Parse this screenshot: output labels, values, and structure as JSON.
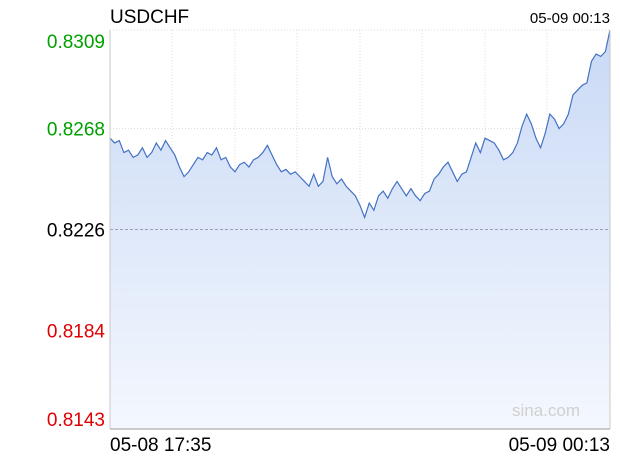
{
  "symbol": "USDCHF",
  "latest_time": "05-09 00:13",
  "watermark": "sina.com",
  "colors": {
    "line": "#4472c4",
    "fill_top": "#c9d9f5",
    "fill_bottom": "#f4f8fe",
    "grid": "#dcdcdc",
    "baseline": "#9aa0bb",
    "up": "#00a000",
    "down": "#e00000",
    "neutral": "#000000",
    "watermark": "#d0d0d0"
  },
  "chart_data": {
    "type": "area",
    "title": "USDCHF",
    "x_range": [
      "05-08 17:35",
      "05-09 00:13"
    ],
    "x_tick_labels": [
      "05-08 17:35",
      "05-09 00:13"
    ],
    "y_tick_labels": [
      {
        "value": 0.8309,
        "label": "0.8309",
        "tone": "up"
      },
      {
        "value": 0.8268,
        "label": "0.8268",
        "tone": "up"
      },
      {
        "value": 0.8226,
        "label": "0.8226",
        "tone": "neutral"
      },
      {
        "value": 0.8184,
        "label": "0.8184",
        "tone": "down"
      },
      {
        "value": 0.8143,
        "label": "0.8143",
        "tone": "down"
      }
    ],
    "ylim": [
      0.8143,
      0.8309
    ],
    "reference_value": 0.8226,
    "grid": true,
    "series": [
      {
        "values": [
          0.8264,
          0.8262,
          0.8263,
          0.8258,
          0.8259,
          0.8256,
          0.8257,
          0.826,
          0.8256,
          0.8258,
          0.8262,
          0.8259,
          0.8263,
          0.826,
          0.8257,
          0.8252,
          0.8248,
          0.825,
          0.8253,
          0.8256,
          0.8255,
          0.8258,
          0.8257,
          0.826,
          0.8255,
          0.8256,
          0.8252,
          0.825,
          0.8253,
          0.8254,
          0.8252,
          0.8255,
          0.8256,
          0.8258,
          0.8261,
          0.8257,
          0.8253,
          0.825,
          0.8251,
          0.8249,
          0.825,
          0.8248,
          0.8246,
          0.8244,
          0.8249,
          0.8244,
          0.8246,
          0.8256,
          0.8248,
          0.8245,
          0.8247,
          0.8244,
          0.8242,
          0.824,
          0.8236,
          0.8231,
          0.8237,
          0.8234,
          0.824,
          0.8242,
          0.8239,
          0.8243,
          0.8246,
          0.8243,
          0.824,
          0.8243,
          0.824,
          0.8238,
          0.8241,
          0.8242,
          0.8247,
          0.8249,
          0.8252,
          0.8254,
          0.825,
          0.8246,
          0.8249,
          0.825,
          0.8256,
          0.8262,
          0.8258,
          0.8264,
          0.8263,
          0.8262,
          0.8259,
          0.8255,
          0.8256,
          0.8258,
          0.8262,
          0.8269,
          0.8274,
          0.827,
          0.8264,
          0.826,
          0.8266,
          0.8274,
          0.8272,
          0.8268,
          0.827,
          0.8274,
          0.8282,
          0.8284,
          0.8286,
          0.8287,
          0.8296,
          0.8299,
          0.8298,
          0.83,
          0.8309
        ]
      }
    ]
  }
}
